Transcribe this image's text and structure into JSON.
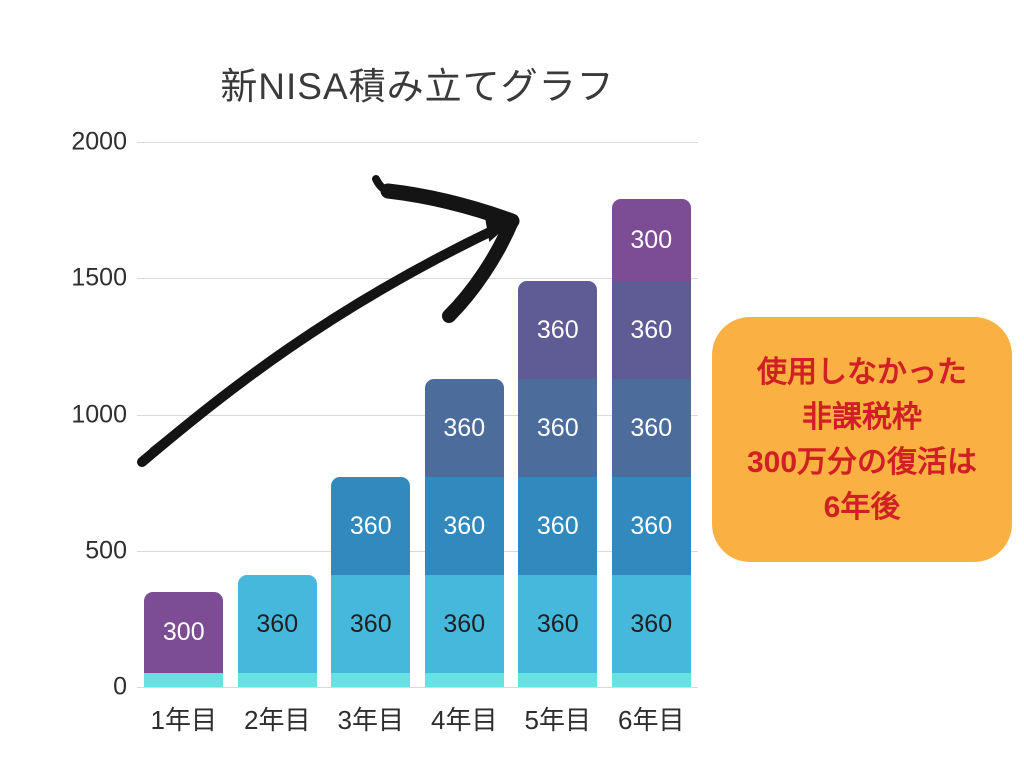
{
  "page": {
    "background": "#ffffff"
  },
  "chart_data": {
    "type": "bar",
    "subtype": "stacked",
    "title": "新NISA積み立てグラフ",
    "xlabel": "",
    "ylabel": "",
    "categories": [
      "1年目",
      "2年目",
      "3年目",
      "4年目",
      "5年目",
      "6年目"
    ],
    "ylim": [
      0,
      2000
    ],
    "y_ticks": [
      0,
      500,
      1000,
      1500,
      2000
    ],
    "grid": true,
    "legend": "none",
    "gridline_color": "#d9d9d9",
    "bar_totals": [
      350,
      410,
      770,
      1130,
      1490,
      1790
    ],
    "bars": [
      {
        "category": "1年目",
        "segments": [
          {
            "value": 50,
            "color": "#66E2E5",
            "label": ""
          },
          {
            "value": 300,
            "color": "#7C4C94",
            "label": "300",
            "label_color": "#ffffff"
          }
        ]
      },
      {
        "category": "2年目",
        "segments": [
          {
            "value": 50,
            "color": "#66E2E5",
            "label": ""
          },
          {
            "value": 360,
            "color": "#45B8DC",
            "label": "360",
            "label_color": "#1f1f1f"
          }
        ]
      },
      {
        "category": "3年目",
        "segments": [
          {
            "value": 50,
            "color": "#66E2E5",
            "label": ""
          },
          {
            "value": 360,
            "color": "#45B8DC",
            "label": "360",
            "label_color": "#1f1f1f"
          },
          {
            "value": 360,
            "color": "#3189BE",
            "label": "360",
            "label_color": "#ffffff"
          }
        ]
      },
      {
        "category": "4年目",
        "segments": [
          {
            "value": 50,
            "color": "#66E2E5",
            "label": ""
          },
          {
            "value": 360,
            "color": "#45B8DC",
            "label": "360",
            "label_color": "#1f1f1f"
          },
          {
            "value": 360,
            "color": "#3189BE",
            "label": "360",
            "label_color": "#ffffff"
          },
          {
            "value": 360,
            "color": "#4C6C9C",
            "label": "360",
            "label_color": "#ffffff"
          }
        ]
      },
      {
        "category": "5年目",
        "segments": [
          {
            "value": 50,
            "color": "#66E2E5",
            "label": ""
          },
          {
            "value": 360,
            "color": "#45B8DC",
            "label": "360",
            "label_color": "#1f1f1f"
          },
          {
            "value": 360,
            "color": "#3189BE",
            "label": "360",
            "label_color": "#ffffff"
          },
          {
            "value": 360,
            "color": "#4C6C9C",
            "label": "360",
            "label_color": "#ffffff"
          },
          {
            "value": 360,
            "color": "#5F5C95",
            "label": "360",
            "label_color": "#ffffff"
          }
        ]
      },
      {
        "category": "6年目",
        "segments": [
          {
            "value": 50,
            "color": "#66E2E5",
            "label": ""
          },
          {
            "value": 360,
            "color": "#45B8DC",
            "label": "360",
            "label_color": "#1f1f1f"
          },
          {
            "value": 360,
            "color": "#3189BE",
            "label": "360",
            "label_color": "#ffffff"
          },
          {
            "value": 360,
            "color": "#4C6C9C",
            "label": "360",
            "label_color": "#ffffff"
          },
          {
            "value": 360,
            "color": "#5F5C95",
            "label": "360",
            "label_color": "#ffffff"
          },
          {
            "value": 300,
            "color": "#7C4C94",
            "label": "300",
            "label_color": "#ffffff"
          }
        ]
      }
    ]
  },
  "callout": {
    "lines": [
      "使用しなかった",
      "非課税枠",
      "300万分の復活は",
      "6年後"
    ],
    "background": "#FBB042",
    "text_color": "#D11F26"
  },
  "annotation": {
    "arrow_color": "#141414"
  }
}
